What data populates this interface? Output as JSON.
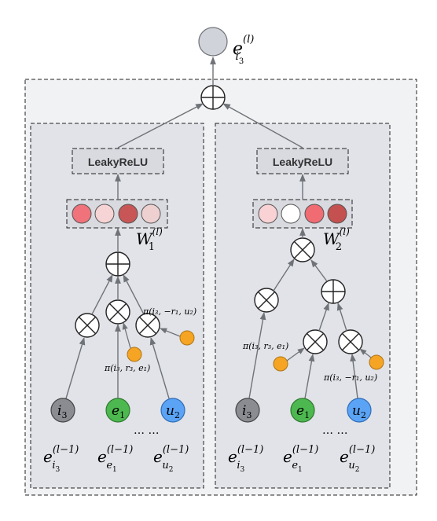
{
  "output_label": {
    "base": "e",
    "sup": "(l)",
    "sub": "i",
    "subsub": "3"
  },
  "left_panel": {
    "activation": "LeakyReLU",
    "weight_label": {
      "base": "W",
      "sub": "1",
      "sup": "(l)"
    },
    "weight_colors": [
      "#f0727a",
      "#f6d3d4",
      "#c85656",
      "#eed0d0"
    ],
    "inputs": {
      "i3": {
        "base": "i",
        "sub": "3"
      },
      "e1": {
        "base": "e",
        "sub": "1"
      },
      "u2": {
        "base": "u",
        "sub": "2"
      }
    },
    "ellipsis": "… …",
    "pi_left": "π(i₃, r₃, e₁)",
    "pi_right": "π(i₃, −r₁, u₂)",
    "embeddings": [
      {
        "base": "e",
        "sup": "(l−1)",
        "sub": "i",
        "subsub": "3"
      },
      {
        "base": "e",
        "sup": "(l−1)",
        "sub": "e",
        "subsub": "1"
      },
      {
        "base": "e",
        "sup": "(l−1)",
        "sub": "u",
        "subsub": "2"
      }
    ]
  },
  "right_panel": {
    "activation": "LeakyReLU",
    "weight_label": {
      "base": "W",
      "sub": "2",
      "sup": "(l)"
    },
    "weight_colors": [
      "#f8d2d4",
      "#ffffff",
      "#f06b72",
      "#c4504f"
    ],
    "inputs": {
      "i3": {
        "base": "i",
        "sub": "3"
      },
      "e1": {
        "base": "e",
        "sub": "1"
      },
      "u2": {
        "base": "u",
        "sub": "2"
      }
    },
    "ellipsis": "… …",
    "pi_left": "π(i₃, r₃, e₁)",
    "pi_right": "π(i₃, −r₁, u₂)",
    "embeddings": [
      {
        "base": "e",
        "sup": "(l−1)",
        "sub": "i",
        "subsub": "3"
      },
      {
        "base": "e",
        "sup": "(l−1)",
        "sub": "e",
        "subsub": "1"
      },
      {
        "base": "e",
        "sup": "(l−1)",
        "sub": "u",
        "subsub": "2"
      }
    ]
  },
  "colors": {
    "node_i3": "#8a8c92",
    "node_e1": "#4cb84f",
    "node_u2": "#5ba3f5",
    "small_node": "#f5a523",
    "output_node": "#d0d3d9",
    "panel_fill": "#e1e3e8",
    "outer_fill": "#f1f2f4",
    "arrow": "#6f7378"
  }
}
